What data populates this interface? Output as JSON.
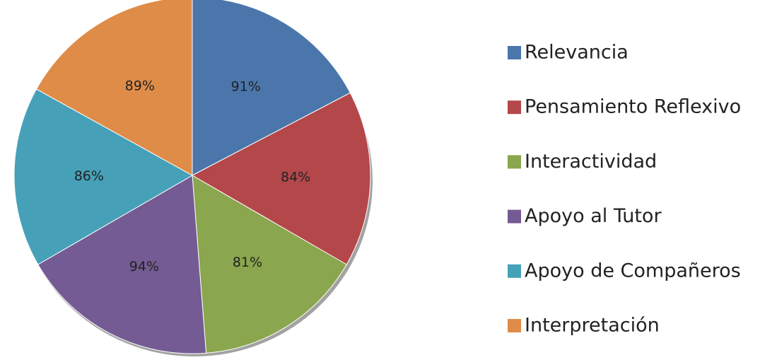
{
  "chart_data": {
    "type": "pie",
    "categories": [
      "Relevancia",
      "Pensamiento Reflexivo",
      "Interactividad",
      "Apoyo al Tutor",
      "Apoyo de Compañeros",
      "Interpretación"
    ],
    "values": [
      91,
      84,
      81,
      94,
      86,
      89
    ],
    "value_labels": [
      "91%",
      "84%",
      "81%",
      "94%",
      "86%",
      "89%"
    ],
    "colors": [
      "#4a76ab",
      "#b4474a",
      "#8aa64e",
      "#745b93",
      "#46a1b8",
      "#df8c48"
    ],
    "legend": "right"
  }
}
